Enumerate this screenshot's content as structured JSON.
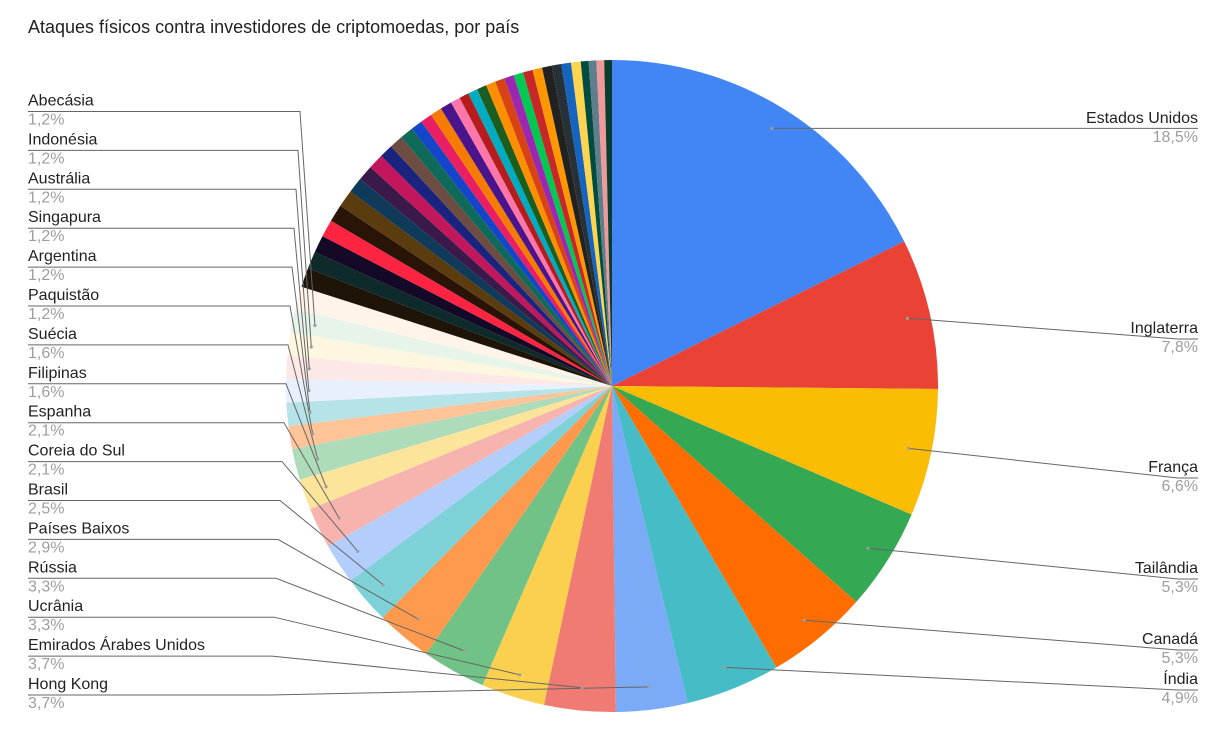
{
  "chart_data": {
    "type": "pie",
    "title": "Ataques físicos contra investidores de criptomoedas, por país",
    "labeled_slices": [
      {
        "name": "Estados Unidos",
        "value": 18.5,
        "label": "18,5%",
        "color": "#4285f4"
      },
      {
        "name": "Inglaterra",
        "value": 7.8,
        "label": "7,8%",
        "color": "#ea4335"
      },
      {
        "name": "França",
        "value": 6.6,
        "label": "6,6%",
        "color": "#fbbc04"
      },
      {
        "name": "Tailândia",
        "value": 5.3,
        "label": "5,3%",
        "color": "#34a853"
      },
      {
        "name": "Canadá",
        "value": 5.3,
        "label": "5,3%",
        "color": "#ff6d01"
      },
      {
        "name": "Índia",
        "value": 4.9,
        "label": "4,9%",
        "color": "#46bdc6"
      },
      {
        "name": "Hong Kong",
        "value": 3.7,
        "label": "3,7%",
        "color": "#7baaf7"
      },
      {
        "name": "Emirados Árabes Unidos",
        "value": 3.7,
        "label": "3,7%",
        "color": "#f07b72"
      },
      {
        "name": "Ucrânia",
        "value": 3.3,
        "label": "3,3%",
        "color": "#fcd04f"
      },
      {
        "name": "Rússia",
        "value": 3.3,
        "label": "3,3%",
        "color": "#71c287"
      },
      {
        "name": "Países Baixos",
        "value": 2.9,
        "label": "2,9%",
        "color": "#ff994d"
      },
      {
        "name": "Brasil",
        "value": 2.5,
        "label": "2,5%",
        "color": "#7ed1d7"
      },
      {
        "name": "Coreia do Sul",
        "value": 2.1,
        "label": "2,1%",
        "color": "#b3cefb"
      },
      {
        "name": "Espanha",
        "value": 2.1,
        "label": "2,1%",
        "color": "#f7b4ae"
      },
      {
        "name": "Filipinas",
        "value": 1.6,
        "label": "1,6%",
        "color": "#fde49b"
      },
      {
        "name": "Suécia",
        "value": 1.6,
        "label": "1,6%",
        "color": "#aedcba"
      },
      {
        "name": "Paquistão",
        "value": 1.2,
        "label": "1,2%",
        "color": "#ffc599"
      },
      {
        "name": "Argentina",
        "value": 1.2,
        "label": "1,2%",
        "color": "#b5e3e8"
      },
      {
        "name": "Singapura",
        "value": 1.2,
        "label": "1,2%",
        "color": "#e8f0fe"
      },
      {
        "name": "Austrália",
        "value": 1.2,
        "label": "1,2%",
        "color": "#fce8e6"
      },
      {
        "name": "Indonésia",
        "value": 1.2,
        "label": "1,2%",
        "color": "#fef7e0"
      },
      {
        "name": "Abecásia",
        "value": 1.2,
        "label": "1,2%",
        "color": "#e6f4ea"
      }
    ],
    "unlabeled_slice_values": [
      1.2,
      1.0,
      0.9,
      0.9,
      0.9,
      0.9,
      0.9,
      0.8,
      0.8,
      0.8,
      0.7,
      0.7,
      0.7,
      0.6,
      0.6,
      0.6,
      0.6,
      0.5,
      0.5,
      0.5,
      0.5,
      0.5,
      0.5,
      0.5,
      0.5,
      0.5,
      0.5,
      0.5,
      0.5,
      0.5,
      0.5,
      0.4,
      0.4,
      0.4,
      0.4
    ],
    "unlabeled_slice_colors": [
      "#fff4ea",
      "#1e1408",
      "#0f2a2a",
      "#140a28",
      "#ff2442",
      "#2a1408",
      "#5a3c0e",
      "#0f3a5a",
      "#3a1a4a",
      "#c2185b",
      "#1a237e",
      "#6d4c41",
      "#0f6a5a",
      "#1545c8",
      "#e91e63",
      "#f57c00",
      "#4a148c",
      "#ff77aa",
      "#b71c1c",
      "#00acc1",
      "#1b5e20",
      "#ff8f00",
      "#d84315",
      "#9c27b0",
      "#00c853",
      "#c62828",
      "#ff9800",
      "#212121",
      "#263238",
      "#1565c0",
      "#ffd54f",
      "#004d40",
      "#607d8b",
      "#ef9a9a",
      "#0b3d2e"
    ],
    "legend": "labels"
  }
}
